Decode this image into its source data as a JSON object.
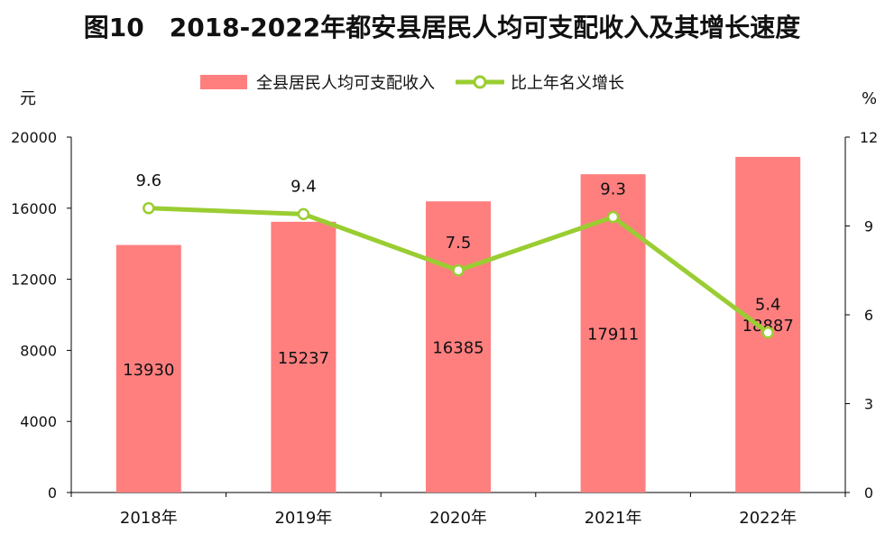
{
  "chart_data": {
    "type": "bar",
    "title": "图10　2018-2022年都安县居民人均可支配收入及其增长速度",
    "categories": [
      "2018年",
      "2019年",
      "2020年",
      "2021年",
      "2022年"
    ],
    "series": [
      {
        "name": "全县居民人均可支配收入",
        "type": "bar",
        "axis": "left",
        "values": [
          13930,
          15237,
          16385,
          17911,
          18887
        ],
        "labels": [
          "13930",
          "15237",
          "16385",
          "17911",
          "18887"
        ],
        "color": "#ff7f7f"
      },
      {
        "name": "比上年名义增长",
        "type": "line",
        "axis": "right",
        "values": [
          9.6,
          9.4,
          7.5,
          9.3,
          5.4
        ],
        "labels": [
          "9.6",
          "9.4",
          "7.5",
          "9.3",
          "5.4"
        ],
        "color": "#9acd32"
      }
    ],
    "ylabel": "元",
    "y2label": "%",
    "ylim": [
      0,
      20000
    ],
    "y2lim": [
      0,
      12
    ],
    "yticks": [
      "0",
      "4000",
      "8000",
      "12000",
      "16000",
      "20000"
    ],
    "y2ticks": [
      "0",
      "3",
      "6",
      "9",
      "12"
    ],
    "legend": "top-center",
    "grid": false
  }
}
